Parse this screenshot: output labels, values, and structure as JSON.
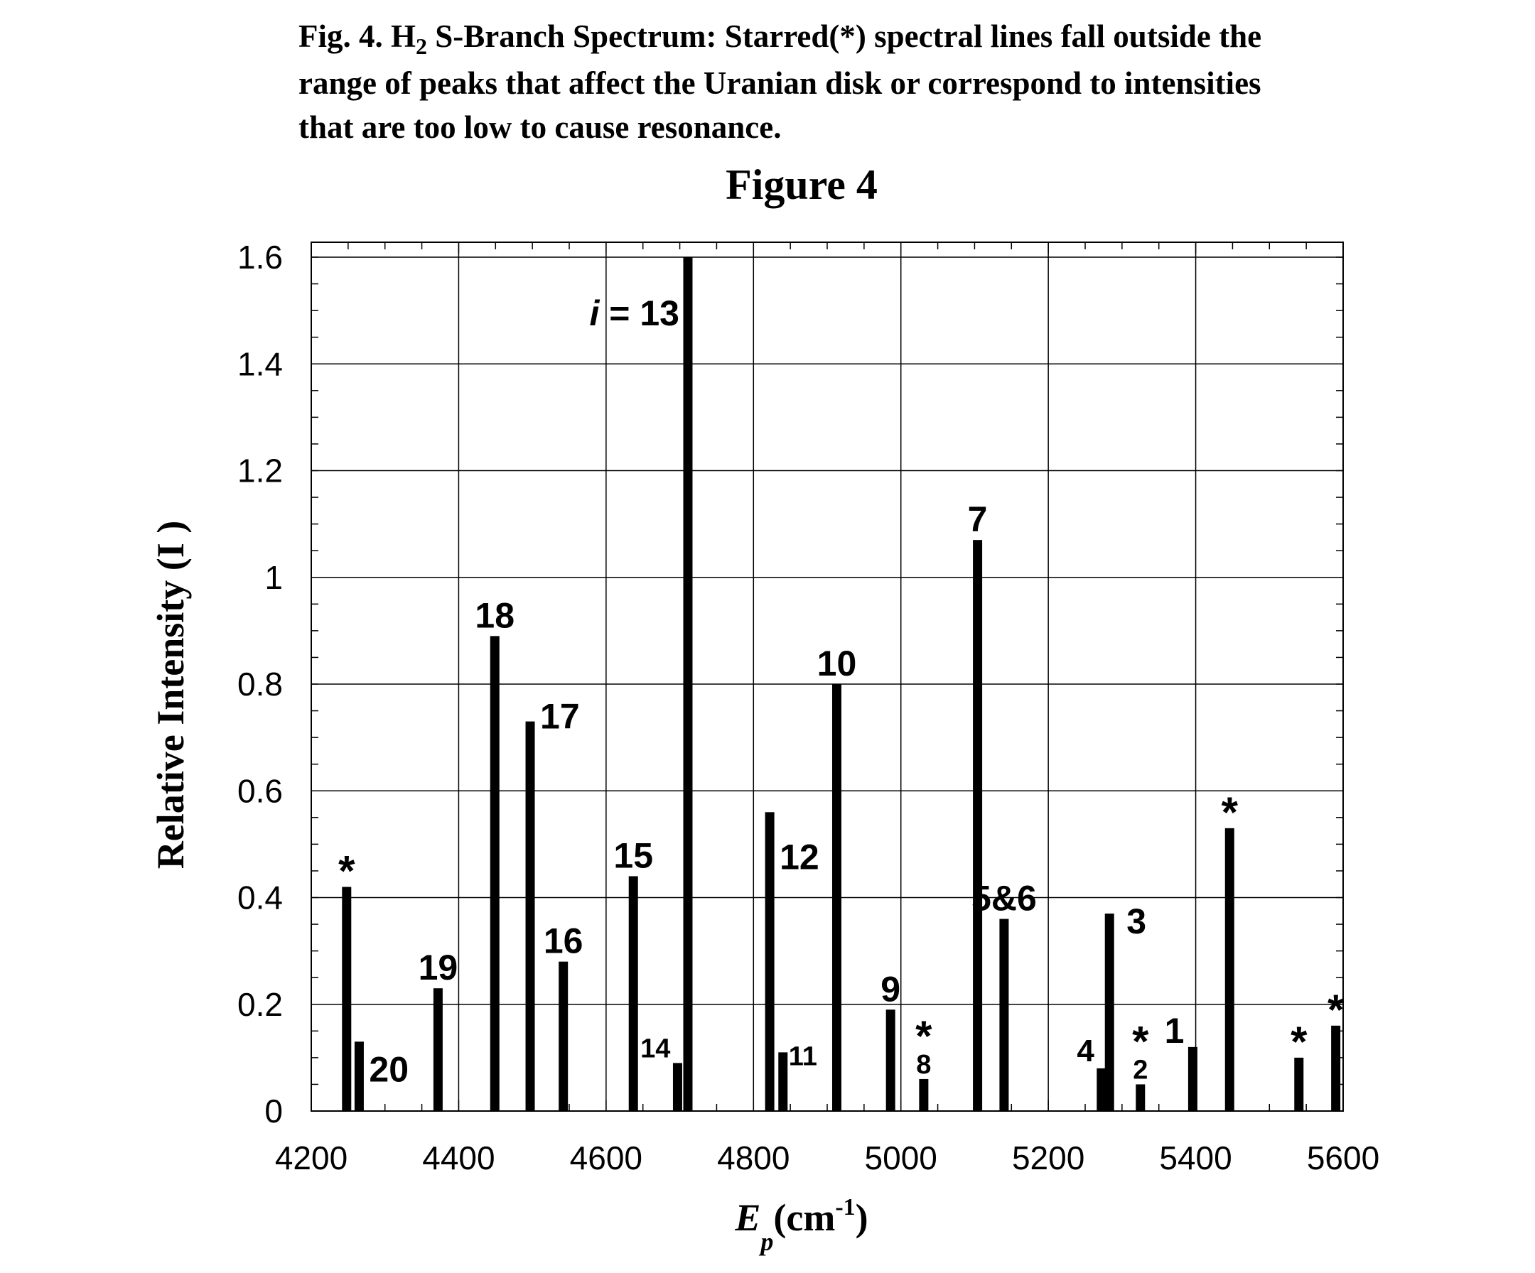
{
  "caption": {
    "prefix": "Fig. 4. H",
    "subscript": "2",
    "rest": " S-Branch Spectrum: Starred(*) spectral lines fall outside the",
    "line2": "range of peaks that affect the Uranian disk or correspond to intensities",
    "line3": "that are too low to cause resonance."
  },
  "chart_data": {
    "type": "bar",
    "title": "Figure 4",
    "xlabel": "E",
    "xlabel_subscript": "p",
    "xlabel_unit": "(cm",
    "xlabel_unit_sup": "-1",
    "xlabel_unit_close": ")",
    "ylabel": "Relative Intensity (I )",
    "xlim": [
      4200,
      5600
    ],
    "ylim": [
      0,
      1.6
    ],
    "xticks": [
      4200,
      4400,
      4600,
      4800,
      5000,
      5200,
      5400,
      5600
    ],
    "xtick_labels": [
      "4200",
      "4400",
      "4600",
      "4800",
      "5000",
      "5200",
      "5400",
      "5600"
    ],
    "yticks": [
      0,
      0.2,
      0.4,
      0.6,
      0.8,
      1,
      1.2,
      1.4,
      1.6
    ],
    "ytick_labels": [
      "0",
      "0.2",
      "0.4",
      "0.6",
      "0.8",
      "1",
      "1.2",
      "1.4",
      "1.6"
    ],
    "grid": true,
    "bar_color": "#000000",
    "series": [
      {
        "x": [
          4248,
          4265,
          4372,
          4449,
          4497,
          4542,
          4637,
          4697,
          4711,
          4822,
          4840,
          4913,
          4986,
          5031,
          5104,
          5140,
          5272,
          5283,
          5325,
          5396,
          5446,
          5540,
          5590
        ],
        "values": [
          0.42,
          0.13,
          0.23,
          0.89,
          0.73,
          0.28,
          0.44,
          0.09,
          1.6,
          0.56,
          0.11,
          0.8,
          0.19,
          0.06,
          1.07,
          0.36,
          0.08,
          0.37,
          0.05,
          0.12,
          0.53,
          0.1,
          0.16
        ],
        "labels": [
          "*",
          "20",
          "19",
          "18",
          "17",
          "16",
          "15",
          "14",
          "i = 13",
          "12",
          "11",
          "10",
          "9",
          "8",
          "7",
          "5&6",
          "4",
          "3",
          "2",
          "1",
          "*",
          "*",
          "*"
        ],
        "starred": [
          false,
          false,
          false,
          false,
          false,
          false,
          false,
          false,
          false,
          false,
          false,
          false,
          false,
          true,
          false,
          false,
          false,
          false,
          true,
          false,
          false,
          false,
          false
        ]
      }
    ]
  }
}
